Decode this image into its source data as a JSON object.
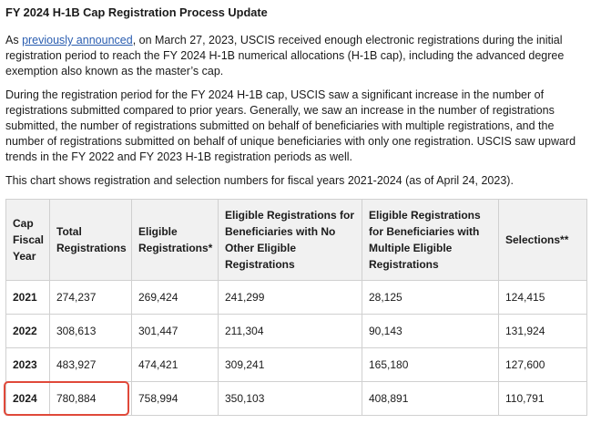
{
  "title": "FY 2024 H-1B Cap Registration Process Update",
  "paragraph1": {
    "prefix": "As ",
    "link": "previously announced",
    "suffix": ", on March 27, 2023, USCIS received enough electronic registrations during the initial registration period to reach the FY 2024 H-1B numerical allocations (H-1B cap), including the advanced degree exemption also known as the master’s cap."
  },
  "paragraph2": "During the registration period for the FY 2024 H-1B cap, USCIS saw a significant increase in the number of registrations submitted compared to prior years. Generally, we saw an increase in the number of registrations submitted, the number of registrations submitted on behalf of beneficiaries with multiple registrations, and the number of registrations submitted on behalf of unique beneficiaries with only one registration. USCIS saw upward trends in the FY 2022 and FY 2023 H-1B registration periods as well.",
  "paragraph3": "This chart shows registration and selection numbers for fiscal years 2021-2024 (as of April 24, 2023).",
  "table": {
    "headers": [
      "Cap Fiscal Year",
      "Total Registrations",
      "Eligible Registrations*",
      "Eligible Registrations for Beneficiaries with No Other Eligible Registrations",
      "Eligible Registrations for Beneficiaries with Multiple Eligible Registrations",
      "Selections**"
    ],
    "rows": [
      [
        "2021",
        "274,237",
        "269,424",
        "241,299",
        "28,125",
        "124,415"
      ],
      [
        "2022",
        "308,613",
        "301,447",
        "211,304",
        "90,143",
        "131,924"
      ],
      [
        "2023",
        "483,927",
        "474,421",
        "309,241",
        "165,180",
        "127,600"
      ],
      [
        "2024",
        "780,884",
        "758,994",
        "350,103",
        "408,891",
        "110,791"
      ]
    ]
  },
  "colors": {
    "link": "#2a5db0",
    "highlight": "#e0493a",
    "header_bg": "#f1f1f1"
  }
}
